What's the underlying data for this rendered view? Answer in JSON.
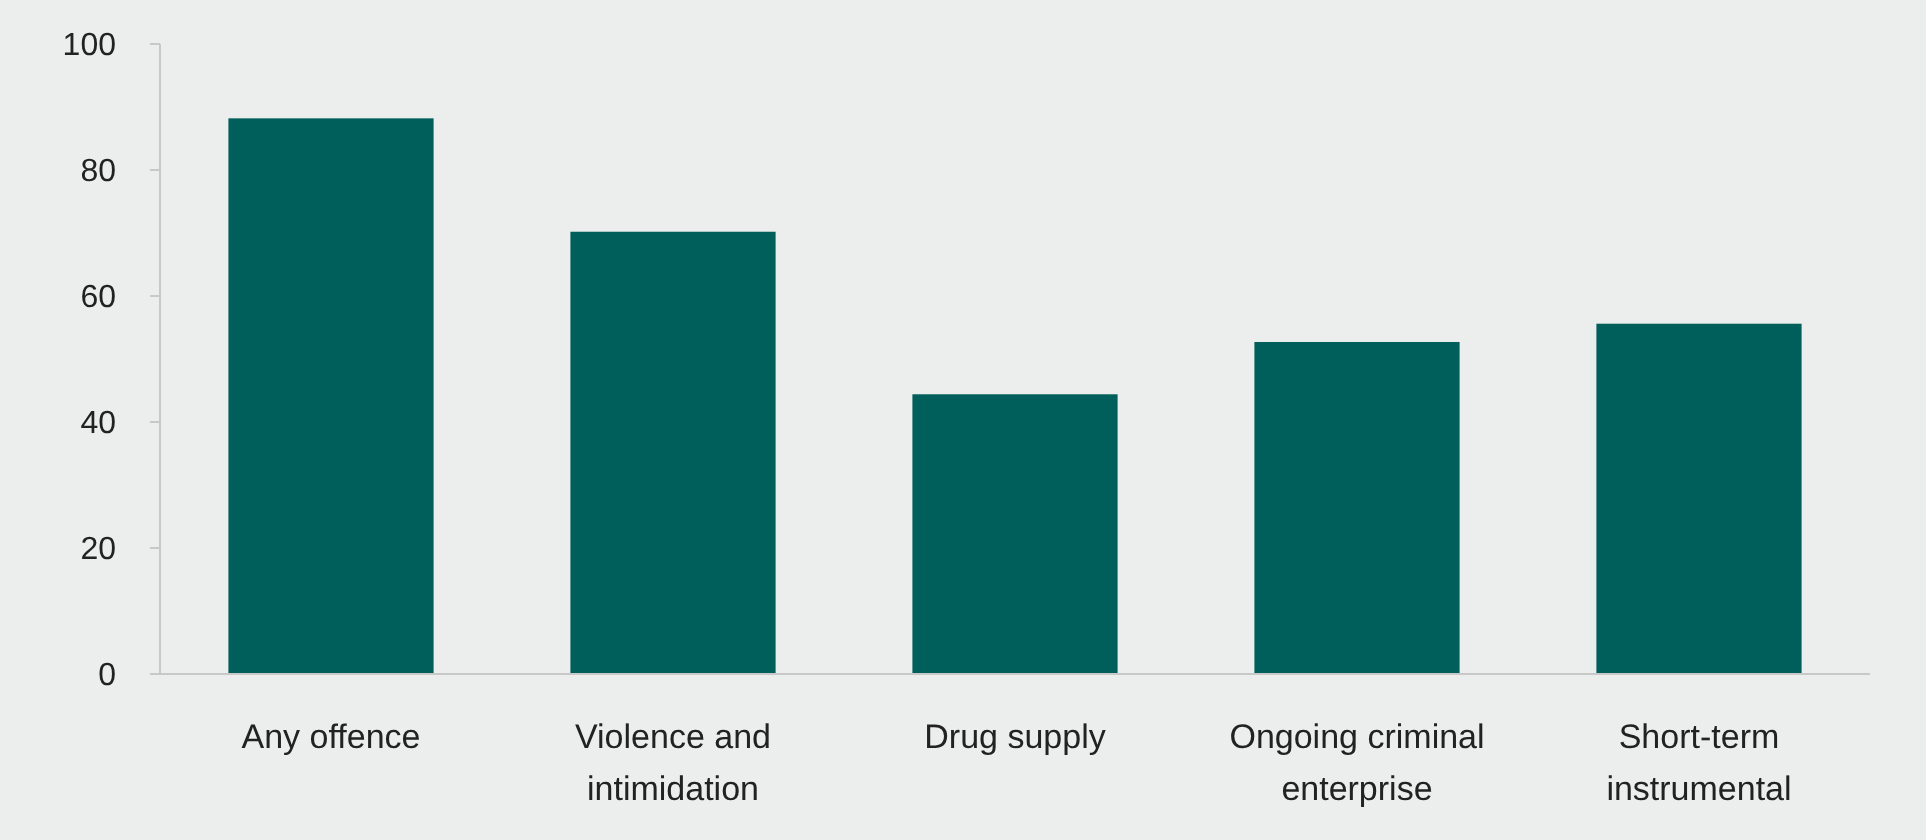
{
  "chart_data": {
    "type": "bar",
    "categories": [
      "Any offence",
      "Violence and intimidation",
      "Drug supply",
      "Ongoing criminal enterprise",
      "Short-term instrumental"
    ],
    "values": [
      88.2,
      70.2,
      44.4,
      52.7,
      55.6
    ],
    "color": "#005f5a",
    "ylim": [
      0,
      100
    ],
    "yticks": [
      0,
      20,
      40,
      60,
      80,
      100
    ],
    "grid": false
  }
}
